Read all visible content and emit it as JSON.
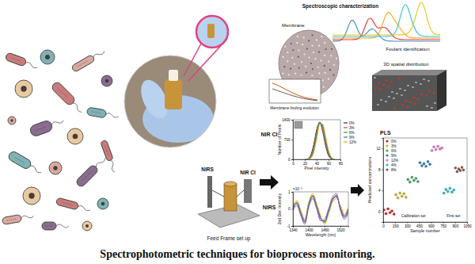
{
  "caption": "Spectrophotometric techniques for bioprocess monitoring.",
  "membrane_panel": {
    "title": "Spectroscopic characterization",
    "labels": [
      "Membrane",
      "Foulant identification",
      "Membrane fouling evolution",
      "3D spatial distribution"
    ]
  },
  "setup_panel": {
    "labels": [
      "NIRS",
      "NIR CI"
    ],
    "caption": "Feed Frame set up"
  },
  "chart_data": [
    {
      "type": "line",
      "annotations": [
        "NIR CI"
      ],
      "x_label": "Pixel intensity",
      "y_label": "Number of Pixels",
      "x": [
        20,
        25,
        30,
        35,
        40,
        45,
        50,
        55,
        60,
        65,
        70
      ],
      "xlim": [
        0,
        80
      ],
      "xticks": [
        0,
        20,
        40,
        60,
        80
      ],
      "ylim": [
        0,
        1400
      ],
      "yticks": [
        0,
        700,
        1400
      ],
      "legend": "right",
      "series": [
        {
          "name": "0%",
          "color": "#333333",
          "values": [
            0,
            20,
            150,
            520,
            1050,
            1300,
            1000,
            480,
            130,
            15,
            0
          ]
        },
        {
          "name": "3%",
          "color": "#e8413c",
          "values": [
            0,
            10,
            110,
            450,
            980,
            1320,
            1080,
            560,
            170,
            25,
            0
          ]
        },
        {
          "name": "6%",
          "color": "#2aa02a",
          "values": [
            0,
            5,
            80,
            380,
            900,
            1310,
            1150,
            640,
            210,
            35,
            0
          ]
        },
        {
          "name": "9%",
          "color": "#3a6fd8",
          "values": [
            0,
            2,
            55,
            310,
            820,
            1280,
            1210,
            720,
            260,
            50,
            2
          ]
        },
        {
          "name": "12%",
          "color": "#e0b000",
          "values": [
            0,
            0,
            35,
            240,
            730,
            1230,
            1250,
            800,
            320,
            70,
            5
          ]
        }
      ]
    },
    {
      "type": "line",
      "annotations": [
        "NIRS",
        "×10⁻³"
      ],
      "x_label": "Wavelength (nm)",
      "y_label": "2nd Der. Intensity",
      "x": [
        1340,
        1355,
        1370,
        1385,
        1400,
        1415,
        1430,
        1445,
        1460,
        1475,
        1490,
        1505,
        1520,
        1535,
        1550
      ],
      "xlim": [
        1340,
        1550
      ],
      "xticks": [
        1340,
        1400,
        1460,
        1520
      ],
      "ylim": [
        -1,
        1
      ],
      "yticks": [
        -1,
        0,
        1
      ],
      "series": [
        {
          "color": "#e8413c",
          "values": [
            0.1,
            0.4,
            -0.2,
            -0.7,
            0.3,
            0.8,
            0.2,
            -0.5,
            -0.8,
            -0.2,
            0.5,
            0.7,
            0.1,
            -0.4,
            0
          ]
        },
        {
          "color": "#e0b000",
          "values": [
            0.2,
            0.5,
            -0.1,
            -0.6,
            0.4,
            0.9,
            0.3,
            -0.4,
            -0.9,
            -0.3,
            0.4,
            0.6,
            0.2,
            -0.3,
            0.1
          ]
        },
        {
          "color": "#2aa02a",
          "values": [
            0,
            0.3,
            -0.3,
            -0.8,
            0.2,
            0.7,
            0.1,
            -0.6,
            -0.7,
            -0.1,
            0.6,
            0.8,
            0,
            -0.5,
            -0.1
          ]
        },
        {
          "color": "#3a6fd8",
          "values": [
            0.1,
            0.35,
            -0.25,
            -0.75,
            0.25,
            0.75,
            0.15,
            -0.55,
            -0.75,
            -0.15,
            0.55,
            0.75,
            0.05,
            -0.45,
            0
          ]
        },
        {
          "color": "#9b4fc0",
          "values": [
            -0.1,
            0.2,
            -0.4,
            -0.9,
            0.1,
            0.6,
            0,
            -0.7,
            -0.6,
            0,
            0.7,
            0.9,
            -0.1,
            -0.6,
            -0.2
          ]
        }
      ]
    },
    {
      "type": "scatter",
      "annotations": [
        "PLS",
        "Calibration set",
        "First set"
      ],
      "x_label": "Sample number",
      "y_label": "Predicted concentrations",
      "xlim": [
        0,
        1050
      ],
      "xticks": [
        0,
        150,
        300,
        450,
        600,
        750,
        900,
        1050
      ],
      "ylim": [
        -2,
        14
      ],
      "yticks": [
        0,
        4,
        8,
        12
      ],
      "legend": "upper left",
      "series": [
        {
          "name": "0%",
          "color": "#e41a1c",
          "x": [
            10,
            35,
            60,
            85,
            110,
            135
          ],
          "values": [
            0.3,
            -0.4,
            0.5,
            -0.2,
            0.1,
            -0.5
          ]
        },
        {
          "name": "3%",
          "color": "#c9b61e",
          "x": [
            160,
            185,
            210,
            235,
            260,
            285
          ],
          "values": [
            3.2,
            2.6,
            3.5,
            2.9,
            3.4,
            2.7
          ]
        },
        {
          "name": "6%",
          "color": "#3aa757",
          "x": [
            310,
            335,
            360,
            385,
            410,
            435
          ],
          "values": [
            6.1,
            5.6,
            6.5,
            5.9,
            6.3,
            5.7
          ]
        },
        {
          "name": "9%",
          "color": "#2c7fb8",
          "x": [
            460,
            485,
            510,
            535,
            560,
            585
          ],
          "values": [
            9.3,
            8.7,
            9.1,
            8.6,
            9.5,
            9.0
          ]
        },
        {
          "name": "12%",
          "color": "#e377c2",
          "x": [
            610,
            635,
            660,
            685,
            710,
            735
          ],
          "values": [
            11.6,
            12.3,
            11.8,
            12.4,
            11.9,
            12.1
          ]
        },
        {
          "name": "4%",
          "color": "#17becf",
          "x": [
            760,
            785,
            810,
            835,
            860,
            885
          ],
          "values": [
            3.5,
            4.2,
            3.8,
            4.4,
            3.7,
            4.1
          ]
        },
        {
          "name": "8%",
          "color": "#8c564b",
          "x": [
            905,
            925,
            945,
            965,
            985,
            1005
          ],
          "values": [
            8.3,
            7.6,
            8.1,
            7.8,
            8.4,
            7.9
          ]
        }
      ]
    }
  ]
}
